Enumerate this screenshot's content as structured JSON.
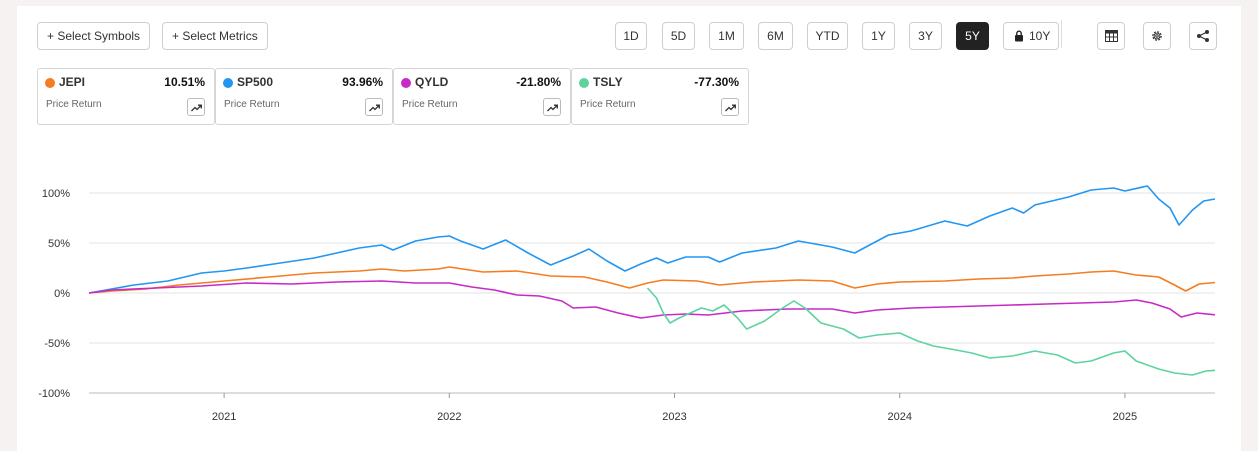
{
  "toolbar": {
    "select_symbols": "+ Select Symbols",
    "select_metrics": "+ Select Metrics",
    "ranges": [
      "1D",
      "5D",
      "1M",
      "6M",
      "YTD",
      "1Y",
      "3Y",
      "5Y",
      "10Y"
    ],
    "active_range": "5Y",
    "locked_range": "10Y",
    "icons": [
      "table-icon",
      "settings-gear-icon",
      "share-icon"
    ]
  },
  "cards": [
    {
      "symbol": "JEPI",
      "return": "10.51%",
      "label": "Price Return",
      "color": "#f57c1f"
    },
    {
      "symbol": "SP500",
      "return": "93.96%",
      "label": "Price Return",
      "color": "#2196f3"
    },
    {
      "symbol": "QYLD",
      "return": "-21.80%",
      "label": "Price Return",
      "color": "#c72ac7"
    },
    {
      "symbol": "TSLY",
      "return": "-77.30%",
      "label": "Price Return",
      "color": "#5dd39e"
    }
  ],
  "chart_data": {
    "type": "line",
    "xlabel": "",
    "ylabel": "",
    "x_ticks": [
      "2021",
      "2022",
      "2023",
      "2024",
      "2025"
    ],
    "y_ticks": [
      "100%",
      "50%",
      "0%",
      "-50%",
      "-100%"
    ],
    "ylim": [
      -100,
      100
    ],
    "xlim": [
      2020.4,
      2025.4
    ],
    "grid": "horizontal",
    "series": [
      {
        "name": "SP500",
        "color": "#2196f3",
        "points": [
          [
            2020.4,
            0
          ],
          [
            2020.5,
            4
          ],
          [
            2020.6,
            8
          ],
          [
            2020.75,
            12
          ],
          [
            2020.9,
            20
          ],
          [
            2021.0,
            22
          ],
          [
            2021.1,
            25
          ],
          [
            2021.25,
            30
          ],
          [
            2021.4,
            35
          ],
          [
            2021.5,
            40
          ],
          [
            2021.6,
            45
          ],
          [
            2021.7,
            48
          ],
          [
            2021.75,
            43
          ],
          [
            2021.85,
            52
          ],
          [
            2021.95,
            56
          ],
          [
            2022.0,
            57
          ],
          [
            2022.05,
            52
          ],
          [
            2022.15,
            44
          ],
          [
            2022.25,
            53
          ],
          [
            2022.35,
            40
          ],
          [
            2022.45,
            28
          ],
          [
            2022.55,
            37
          ],
          [
            2022.62,
            44
          ],
          [
            2022.7,
            32
          ],
          [
            2022.78,
            22
          ],
          [
            2022.85,
            29
          ],
          [
            2022.92,
            35
          ],
          [
            2022.97,
            30
          ],
          [
            2023.05,
            36
          ],
          [
            2023.15,
            36
          ],
          [
            2023.2,
            31
          ],
          [
            2023.3,
            40
          ],
          [
            2023.45,
            45
          ],
          [
            2023.55,
            52
          ],
          [
            2023.6,
            50
          ],
          [
            2023.7,
            46
          ],
          [
            2023.8,
            40
          ],
          [
            2023.85,
            46
          ],
          [
            2023.95,
            58
          ],
          [
            2024.05,
            62
          ],
          [
            2024.2,
            72
          ],
          [
            2024.3,
            67
          ],
          [
            2024.4,
            77
          ],
          [
            2024.5,
            85
          ],
          [
            2024.55,
            80
          ],
          [
            2024.6,
            88
          ],
          [
            2024.75,
            96
          ],
          [
            2024.85,
            103
          ],
          [
            2024.95,
            105
          ],
          [
            2025.0,
            102
          ],
          [
            2025.1,
            107
          ],
          [
            2025.15,
            94
          ],
          [
            2025.2,
            85
          ],
          [
            2025.24,
            68
          ],
          [
            2025.3,
            83
          ],
          [
            2025.35,
            92
          ],
          [
            2025.4,
            94
          ]
        ]
      },
      {
        "name": "JEPI",
        "color": "#f57c1f",
        "points": [
          [
            2020.4,
            0
          ],
          [
            2020.5,
            2
          ],
          [
            2020.65,
            4
          ],
          [
            2020.8,
            8
          ],
          [
            2021.0,
            12
          ],
          [
            2021.2,
            16
          ],
          [
            2021.4,
            20
          ],
          [
            2021.6,
            22
          ],
          [
            2021.7,
            24
          ],
          [
            2021.8,
            22
          ],
          [
            2021.95,
            24
          ],
          [
            2022.0,
            26
          ],
          [
            2022.15,
            21
          ],
          [
            2022.3,
            22
          ],
          [
            2022.45,
            17
          ],
          [
            2022.6,
            16
          ],
          [
            2022.7,
            11
          ],
          [
            2022.8,
            5
          ],
          [
            2022.88,
            10
          ],
          [
            2022.95,
            13
          ],
          [
            2023.1,
            12
          ],
          [
            2023.2,
            8
          ],
          [
            2023.35,
            11
          ],
          [
            2023.55,
            13
          ],
          [
            2023.7,
            12
          ],
          [
            2023.8,
            5
          ],
          [
            2023.9,
            9
          ],
          [
            2024.0,
            11
          ],
          [
            2024.2,
            12
          ],
          [
            2024.35,
            14
          ],
          [
            2024.5,
            15
          ],
          [
            2024.6,
            17
          ],
          [
            2024.75,
            19
          ],
          [
            2024.85,
            21
          ],
          [
            2024.95,
            22
          ],
          [
            2025.05,
            18
          ],
          [
            2025.15,
            16
          ],
          [
            2025.22,
            8
          ],
          [
            2025.27,
            2
          ],
          [
            2025.33,
            9
          ],
          [
            2025.4,
            10.5
          ]
        ]
      },
      {
        "name": "QYLD",
        "color": "#c72ac7",
        "points": [
          [
            2020.4,
            0
          ],
          [
            2020.5,
            3
          ],
          [
            2020.7,
            5
          ],
          [
            2020.9,
            7
          ],
          [
            2021.1,
            10
          ],
          [
            2021.3,
            9
          ],
          [
            2021.5,
            11
          ],
          [
            2021.7,
            12
          ],
          [
            2021.85,
            10
          ],
          [
            2022.0,
            10
          ],
          [
            2022.1,
            6
          ],
          [
            2022.2,
            3
          ],
          [
            2022.3,
            -2
          ],
          [
            2022.4,
            -3
          ],
          [
            2022.5,
            -8
          ],
          [
            2022.55,
            -15
          ],
          [
            2022.65,
            -14
          ],
          [
            2022.75,
            -20
          ],
          [
            2022.85,
            -25
          ],
          [
            2022.95,
            -22
          ],
          [
            2023.05,
            -21
          ],
          [
            2023.15,
            -22
          ],
          [
            2023.3,
            -18
          ],
          [
            2023.5,
            -16
          ],
          [
            2023.7,
            -16
          ],
          [
            2023.8,
            -20
          ],
          [
            2023.9,
            -17
          ],
          [
            2024.05,
            -15
          ],
          [
            2024.2,
            -14
          ],
          [
            2024.35,
            -13
          ],
          [
            2024.5,
            -12
          ],
          [
            2024.65,
            -11
          ],
          [
            2024.8,
            -10
          ],
          [
            2024.95,
            -9
          ],
          [
            2025.05,
            -7
          ],
          [
            2025.12,
            -10
          ],
          [
            2025.2,
            -16
          ],
          [
            2025.25,
            -24
          ],
          [
            2025.32,
            -20
          ],
          [
            2025.4,
            -21.8
          ]
        ]
      },
      {
        "name": "TSLY",
        "color": "#5dd39e",
        "points": [
          [
            2022.88,
            5
          ],
          [
            2022.92,
            -5
          ],
          [
            2022.95,
            -20
          ],
          [
            2022.98,
            -30
          ],
          [
            2023.02,
            -25
          ],
          [
            2023.07,
            -20
          ],
          [
            2023.12,
            -15
          ],
          [
            2023.17,
            -18
          ],
          [
            2023.22,
            -12
          ],
          [
            2023.28,
            -25
          ],
          [
            2023.32,
            -36
          ],
          [
            2023.4,
            -28
          ],
          [
            2023.48,
            -15
          ],
          [
            2023.53,
            -8
          ],
          [
            2023.58,
            -15
          ],
          [
            2023.65,
            -30
          ],
          [
            2023.75,
            -36
          ],
          [
            2023.82,
            -45
          ],
          [
            2023.9,
            -42
          ],
          [
            2024.0,
            -40
          ],
          [
            2024.08,
            -48
          ],
          [
            2024.15,
            -53
          ],
          [
            2024.25,
            -57
          ],
          [
            2024.32,
            -60
          ],
          [
            2024.4,
            -65
          ],
          [
            2024.5,
            -63
          ],
          [
            2024.6,
            -58
          ],
          [
            2024.7,
            -62
          ],
          [
            2024.78,
            -70
          ],
          [
            2024.85,
            -68
          ],
          [
            2024.95,
            -60
          ],
          [
            2025.0,
            -58
          ],
          [
            2025.05,
            -68
          ],
          [
            2025.15,
            -76
          ],
          [
            2025.22,
            -80
          ],
          [
            2025.3,
            -82
          ],
          [
            2025.36,
            -78
          ],
          [
            2025.4,
            -77.3
          ]
        ]
      }
    ]
  }
}
